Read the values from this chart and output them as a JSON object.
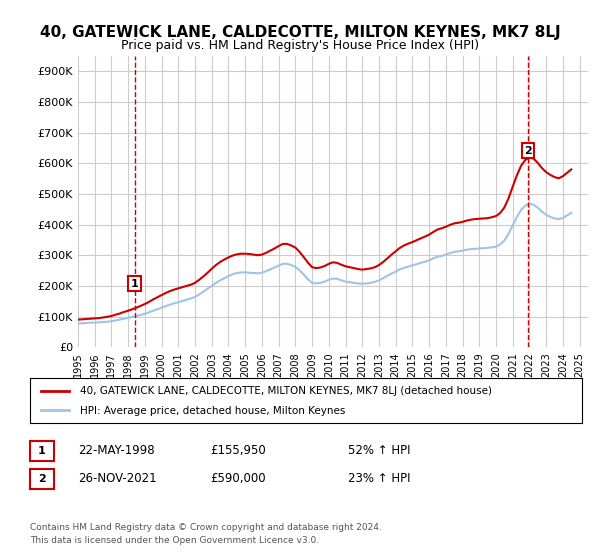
{
  "title": "40, GATEWICK LANE, CALDECOTTE, MILTON KEYNES, MK7 8LJ",
  "subtitle": "Price paid vs. HM Land Registry's House Price Index (HPI)",
  "title_fontsize": 11,
  "subtitle_fontsize": 9,
  "ylabel_ticks": [
    "£0",
    "£100K",
    "£200K",
    "£300K",
    "£400K",
    "£500K",
    "£600K",
    "£700K",
    "£800K",
    "£900K"
  ],
  "ytick_values": [
    0,
    100000,
    200000,
    300000,
    400000,
    500000,
    600000,
    700000,
    800000,
    900000
  ],
  "ylim": [
    0,
    950000
  ],
  "xlim_start": 1995.0,
  "xlim_end": 2025.5,
  "background_color": "#ffffff",
  "grid_color": "#cccccc",
  "hpi_color": "#a0c4e8",
  "price_color": "#cc0000",
  "marker1_date": 1998.38,
  "marker1_value": 155950,
  "marker1_label": "1",
  "marker2_date": 2021.9,
  "marker2_value": 590000,
  "marker2_label": "2",
  "annotation1_date": "22-MAY-1998",
  "annotation1_price": "£155,950",
  "annotation1_hpi": "52% ↑ HPI",
  "annotation2_date": "26-NOV-2021",
  "annotation2_price": "£590,000",
  "annotation2_hpi": "23% ↑ HPI",
  "legend_line1": "40, GATEWICK LANE, CALDECOTTE, MILTON KEYNES, MK7 8LJ (detached house)",
  "legend_line2": "HPI: Average price, detached house, Milton Keynes",
  "footer1": "Contains HM Land Registry data © Crown copyright and database right 2024.",
  "footer2": "This data is licensed under the Open Government Licence v3.0.",
  "xtick_years": [
    1995,
    1996,
    1997,
    1998,
    1999,
    2000,
    2001,
    2002,
    2003,
    2004,
    2005,
    2006,
    2007,
    2008,
    2009,
    2010,
    2011,
    2012,
    2013,
    2014,
    2015,
    2016,
    2017,
    2018,
    2019,
    2020,
    2021,
    2022,
    2023,
    2024,
    2025
  ],
  "hpi_data_x": [
    1995.0,
    1995.25,
    1995.5,
    1995.75,
    1996.0,
    1996.25,
    1996.5,
    1996.75,
    1997.0,
    1997.25,
    1997.5,
    1997.75,
    1998.0,
    1998.25,
    1998.5,
    1998.75,
    1999.0,
    1999.25,
    1999.5,
    1999.75,
    2000.0,
    2000.25,
    2000.5,
    2000.75,
    2001.0,
    2001.25,
    2001.5,
    2001.75,
    2002.0,
    2002.25,
    2002.5,
    2002.75,
    2003.0,
    2003.25,
    2003.5,
    2003.75,
    2004.0,
    2004.25,
    2004.5,
    2004.75,
    2005.0,
    2005.25,
    2005.5,
    2005.75,
    2006.0,
    2006.25,
    2006.5,
    2006.75,
    2007.0,
    2007.25,
    2007.5,
    2007.75,
    2008.0,
    2008.25,
    2008.5,
    2008.75,
    2009.0,
    2009.25,
    2009.5,
    2009.75,
    2010.0,
    2010.25,
    2010.5,
    2010.75,
    2011.0,
    2011.25,
    2011.5,
    2011.75,
    2012.0,
    2012.25,
    2012.5,
    2012.75,
    2013.0,
    2013.25,
    2013.5,
    2013.75,
    2014.0,
    2014.25,
    2014.5,
    2014.75,
    2015.0,
    2015.25,
    2015.5,
    2015.75,
    2016.0,
    2016.25,
    2016.5,
    2016.75,
    2017.0,
    2017.25,
    2017.5,
    2017.75,
    2018.0,
    2018.25,
    2018.5,
    2018.75,
    2019.0,
    2019.25,
    2019.5,
    2019.75,
    2020.0,
    2020.25,
    2020.5,
    2020.75,
    2021.0,
    2021.25,
    2021.5,
    2021.75,
    2022.0,
    2022.25,
    2022.5,
    2022.75,
    2023.0,
    2023.25,
    2023.5,
    2023.75,
    2024.0,
    2024.25,
    2024.5
  ],
  "hpi_data_y": [
    77000,
    78000,
    79000,
    80000,
    80500,
    81000,
    82000,
    83000,
    85000,
    87000,
    90000,
    93000,
    96000,
    99000,
    102000,
    105000,
    109000,
    114000,
    119000,
    124000,
    129000,
    134000,
    139000,
    143000,
    147000,
    151000,
    155000,
    159000,
    164000,
    172000,
    181000,
    191000,
    200000,
    210000,
    218000,
    225000,
    232000,
    238000,
    242000,
    244000,
    244000,
    243000,
    242000,
    241000,
    243000,
    248000,
    254000,
    260000,
    266000,
    272000,
    272000,
    268000,
    262000,
    251000,
    237000,
    222000,
    210000,
    208000,
    210000,
    214000,
    220000,
    224000,
    223000,
    218000,
    214000,
    212000,
    210000,
    208000,
    207000,
    208000,
    210000,
    213000,
    218000,
    225000,
    233000,
    240000,
    247000,
    254000,
    259000,
    263000,
    267000,
    271000,
    275000,
    279000,
    283000,
    290000,
    295000,
    298000,
    302000,
    307000,
    311000,
    313000,
    315000,
    318000,
    320000,
    321000,
    322000,
    323000,
    324000,
    326000,
    328000,
    335000,
    348000,
    370000,
    398000,
    425000,
    448000,
    462000,
    468000,
    465000,
    455000,
    442000,
    432000,
    425000,
    420000,
    418000,
    422000,
    430000,
    438000
  ],
  "price_data_x": [
    1995.0,
    1995.25,
    1995.5,
    1995.75,
    1996.0,
    1996.25,
    1996.5,
    1996.75,
    1997.0,
    1997.25,
    1997.5,
    1997.75,
    1998.0,
    1998.25,
    1998.5,
    1998.75,
    1999.0,
    1999.25,
    1999.5,
    1999.75,
    2000.0,
    2000.25,
    2000.5,
    2000.75,
    2001.0,
    2001.25,
    2001.5,
    2001.75,
    2002.0,
    2002.25,
    2002.5,
    2002.75,
    2003.0,
    2003.25,
    2003.5,
    2003.75,
    2004.0,
    2004.25,
    2004.5,
    2004.75,
    2005.0,
    2005.25,
    2005.5,
    2005.75,
    2006.0,
    2006.25,
    2006.5,
    2006.75,
    2007.0,
    2007.25,
    2007.5,
    2007.75,
    2008.0,
    2008.25,
    2008.5,
    2008.75,
    2009.0,
    2009.25,
    2009.5,
    2009.75,
    2010.0,
    2010.25,
    2010.5,
    2010.75,
    2011.0,
    2011.25,
    2011.5,
    2011.75,
    2012.0,
    2012.25,
    2012.5,
    2012.75,
    2013.0,
    2013.25,
    2013.5,
    2013.75,
    2014.0,
    2014.25,
    2014.5,
    2014.75,
    2015.0,
    2015.25,
    2015.5,
    2015.75,
    2016.0,
    2016.25,
    2016.5,
    2016.75,
    2017.0,
    2017.25,
    2017.5,
    2017.75,
    2018.0,
    2018.25,
    2018.5,
    2018.75,
    2019.0,
    2019.25,
    2019.5,
    2019.75,
    2020.0,
    2020.25,
    2020.5,
    2020.75,
    2021.0,
    2021.25,
    2021.5,
    2021.75,
    2022.0,
    2022.25,
    2022.5,
    2022.75,
    2023.0,
    2023.25,
    2023.5,
    2023.75,
    2024.0,
    2024.25,
    2024.5
  ],
  "price_data_y": [
    90000,
    91000,
    92000,
    93000,
    94000,
    95000,
    97000,
    99000,
    102000,
    106000,
    110000,
    115000,
    119000,
    124000,
    129000,
    135000,
    141000,
    148000,
    156000,
    163000,
    170000,
    177000,
    183000,
    188000,
    192000,
    196000,
    200000,
    204000,
    210000,
    220000,
    231000,
    243000,
    256000,
    268000,
    278000,
    286000,
    293000,
    299000,
    303000,
    305000,
    305000,
    304000,
    302000,
    300000,
    302000,
    308000,
    315000,
    322000,
    330000,
    337000,
    337000,
    332000,
    325000,
    311000,
    294000,
    276000,
    261000,
    258000,
    260000,
    265000,
    272000,
    277000,
    275000,
    269000,
    264000,
    261000,
    258000,
    255000,
    253000,
    255000,
    257000,
    261000,
    268000,
    278000,
    290000,
    302000,
    313000,
    324000,
    332000,
    338000,
    343000,
    349000,
    355000,
    361000,
    367000,
    376000,
    384000,
    388000,
    393000,
    399000,
    404000,
    406000,
    409000,
    413000,
    416000,
    418000,
    419000,
    420000,
    421000,
    424000,
    428000,
    438000,
    456000,
    486000,
    524000,
    561000,
    592000,
    611000,
    619000,
    615000,
    601000,
    584000,
    571000,
    562000,
    555000,
    551000,
    558000,
    569000,
    580000
  ]
}
